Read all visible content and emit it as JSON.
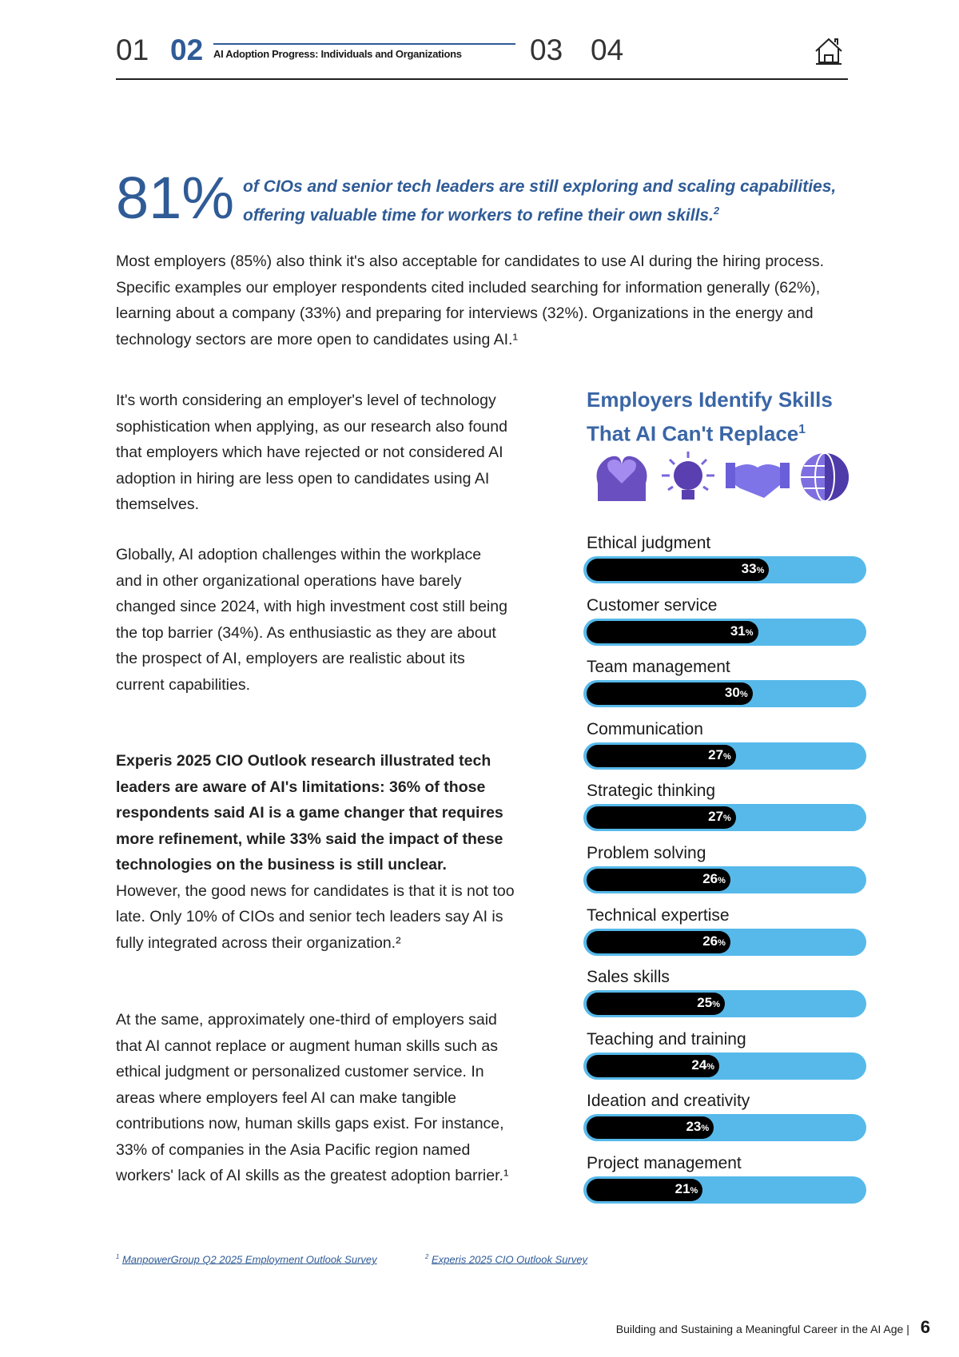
{
  "header": {
    "sections": [
      "01",
      "02",
      "03",
      "04"
    ],
    "active_title": "AI Adoption Progress: Individuals and Organizations",
    "home_icon": "home-icon"
  },
  "stat": {
    "value": "81%",
    "text": "of CIOs and senior tech leaders are still exploring and scaling capabilities, offering valuable time for workers to refine their own skills.",
    "sup": "2"
  },
  "intro": "Most employers (85%) also think it's also acceptable for candidates to use AI during the hiring process. Specific examples our employer respondents cited included searching for information generally (62%), learning about a company (33%) and preparing for interviews (32%). Organizations in the energy and technology sectors are more open to candidates using AI.¹",
  "left": {
    "p1": "It's worth considering an employer's level of technology sophistication when applying, as our research also found that employers which have rejected or not considered AI adoption in hiring are less open to candidates using AI themselves.",
    "p2": "Globally, AI adoption challenges within the workplace and in other organizational operations have barely changed since 2024, with high investment cost still being the top barrier (34%). As enthusiastic as they are about the prospect of AI, employers are realistic about its current capabilities.",
    "p3_bold": "Experis 2025 CIO Outlook research illustrated tech leaders are aware of AI's limitations: 36% of those respondents said AI is a game changer that requires more refinement, while 33% said the impact of these technologies on the business is still unclear.",
    "p3_rest": " However, the good news for candidates is that it is not too late. Only 10% of CIOs and senior tech leaders say AI is fully integrated across their organization.²",
    "p4": "At the same, approximately one-third of employers said that AI cannot replace or augment human skills such as ethical judgment or personalized customer service. In areas where employers feel AI can make tangible contributions now, human skills gaps exist. For instance, 33% of companies in the Asia Pacific region named workers' lack of AI skills as the greatest adoption barrier.¹"
  },
  "chart_data": {
    "type": "bar",
    "title": "Employers Identify Skills That AI Can't Replace",
    "title_sup": "1",
    "icons": [
      "heart-heads-icon",
      "lightbulb-puzzle-icon",
      "handshake-icon",
      "globe-puzzle-icon"
    ],
    "categories": [
      "Ethical judgment",
      "Customer service",
      "Team management",
      "Communication",
      "Strategic thinking",
      "Problem solving",
      "Technical expertise",
      "Sales skills",
      "Teaching and training",
      "Ideation and creativity",
      "Project management"
    ],
    "values": [
      33,
      31,
      30,
      27,
      27,
      26,
      26,
      25,
      24,
      23,
      21
    ],
    "unit": "%",
    "colors": {
      "track": "#56b9ea",
      "fill": "#000000",
      "title": "#3a66a6"
    }
  },
  "footnotes": [
    {
      "sup": "1",
      "text": "ManpowerGroup Q2 2025 Employment Outlook Survey"
    },
    {
      "sup": "2",
      "text": "Experis 2025 CIO Outlook Survey"
    }
  ],
  "footer": {
    "text": "Building and Sustaining a Meaningful Career in the AI Age",
    "page": "6"
  }
}
